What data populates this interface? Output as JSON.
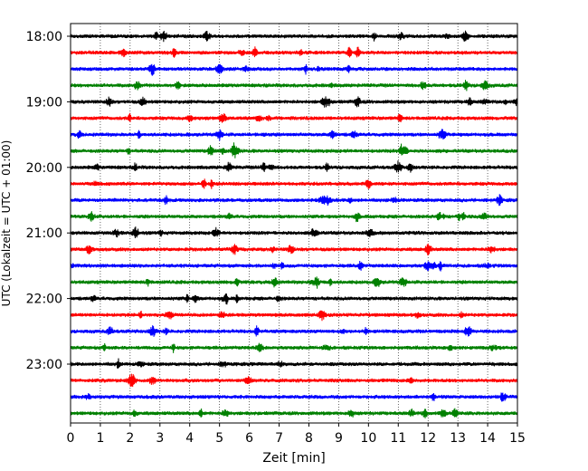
{
  "chart_data": {
    "type": "line",
    "title": "",
    "xlabel": "Zeit  [min]",
    "ylabel": "UTC (Lokalzeit = UTC + 01:00)",
    "xlim": [
      0,
      15
    ],
    "x_ticks": [
      0,
      1,
      2,
      3,
      4,
      5,
      6,
      7,
      8,
      9,
      10,
      11,
      12,
      13,
      14,
      15
    ],
    "x_tick_labels": [
      "0",
      "1",
      "2",
      "3",
      "4",
      "5",
      "6",
      "7",
      "8",
      "9",
      "10",
      "11",
      "12",
      "13",
      "14",
      "15"
    ],
    "y_tick_labels": [
      "18:00",
      "19:00",
      "20:00",
      "21:00",
      "22:00",
      "23:00"
    ],
    "grid": "vertical dotted",
    "trace_minutes": 15,
    "colors_cycle": [
      "#000000",
      "#ff0000",
      "#0000ff",
      "#008000"
    ],
    "series": [
      {
        "start": "18:00",
        "color": "#000000"
      },
      {
        "start": "18:15",
        "color": "#ff0000"
      },
      {
        "start": "18:30",
        "color": "#0000ff"
      },
      {
        "start": "18:45",
        "color": "#008000"
      },
      {
        "start": "19:00",
        "color": "#000000"
      },
      {
        "start": "19:15",
        "color": "#ff0000"
      },
      {
        "start": "19:30",
        "color": "#0000ff"
      },
      {
        "start": "19:45",
        "color": "#008000"
      },
      {
        "start": "20:00",
        "color": "#000000"
      },
      {
        "start": "20:15",
        "color": "#ff0000"
      },
      {
        "start": "20:30",
        "color": "#0000ff"
      },
      {
        "start": "20:45",
        "color": "#008000"
      },
      {
        "start": "21:00",
        "color": "#000000"
      },
      {
        "start": "21:15",
        "color": "#ff0000"
      },
      {
        "start": "21:30",
        "color": "#0000ff"
      },
      {
        "start": "21:45",
        "color": "#008000"
      },
      {
        "start": "22:00",
        "color": "#000000"
      },
      {
        "start": "22:15",
        "color": "#ff0000"
      },
      {
        "start": "22:30",
        "color": "#0000ff"
      },
      {
        "start": "22:45",
        "color": "#008000"
      },
      {
        "start": "23:00",
        "color": "#000000"
      },
      {
        "start": "23:15",
        "color": "#ff0000"
      },
      {
        "start": "23:30",
        "color": "#0000ff"
      },
      {
        "start": "23:45",
        "color": "#008000"
      }
    ]
  }
}
